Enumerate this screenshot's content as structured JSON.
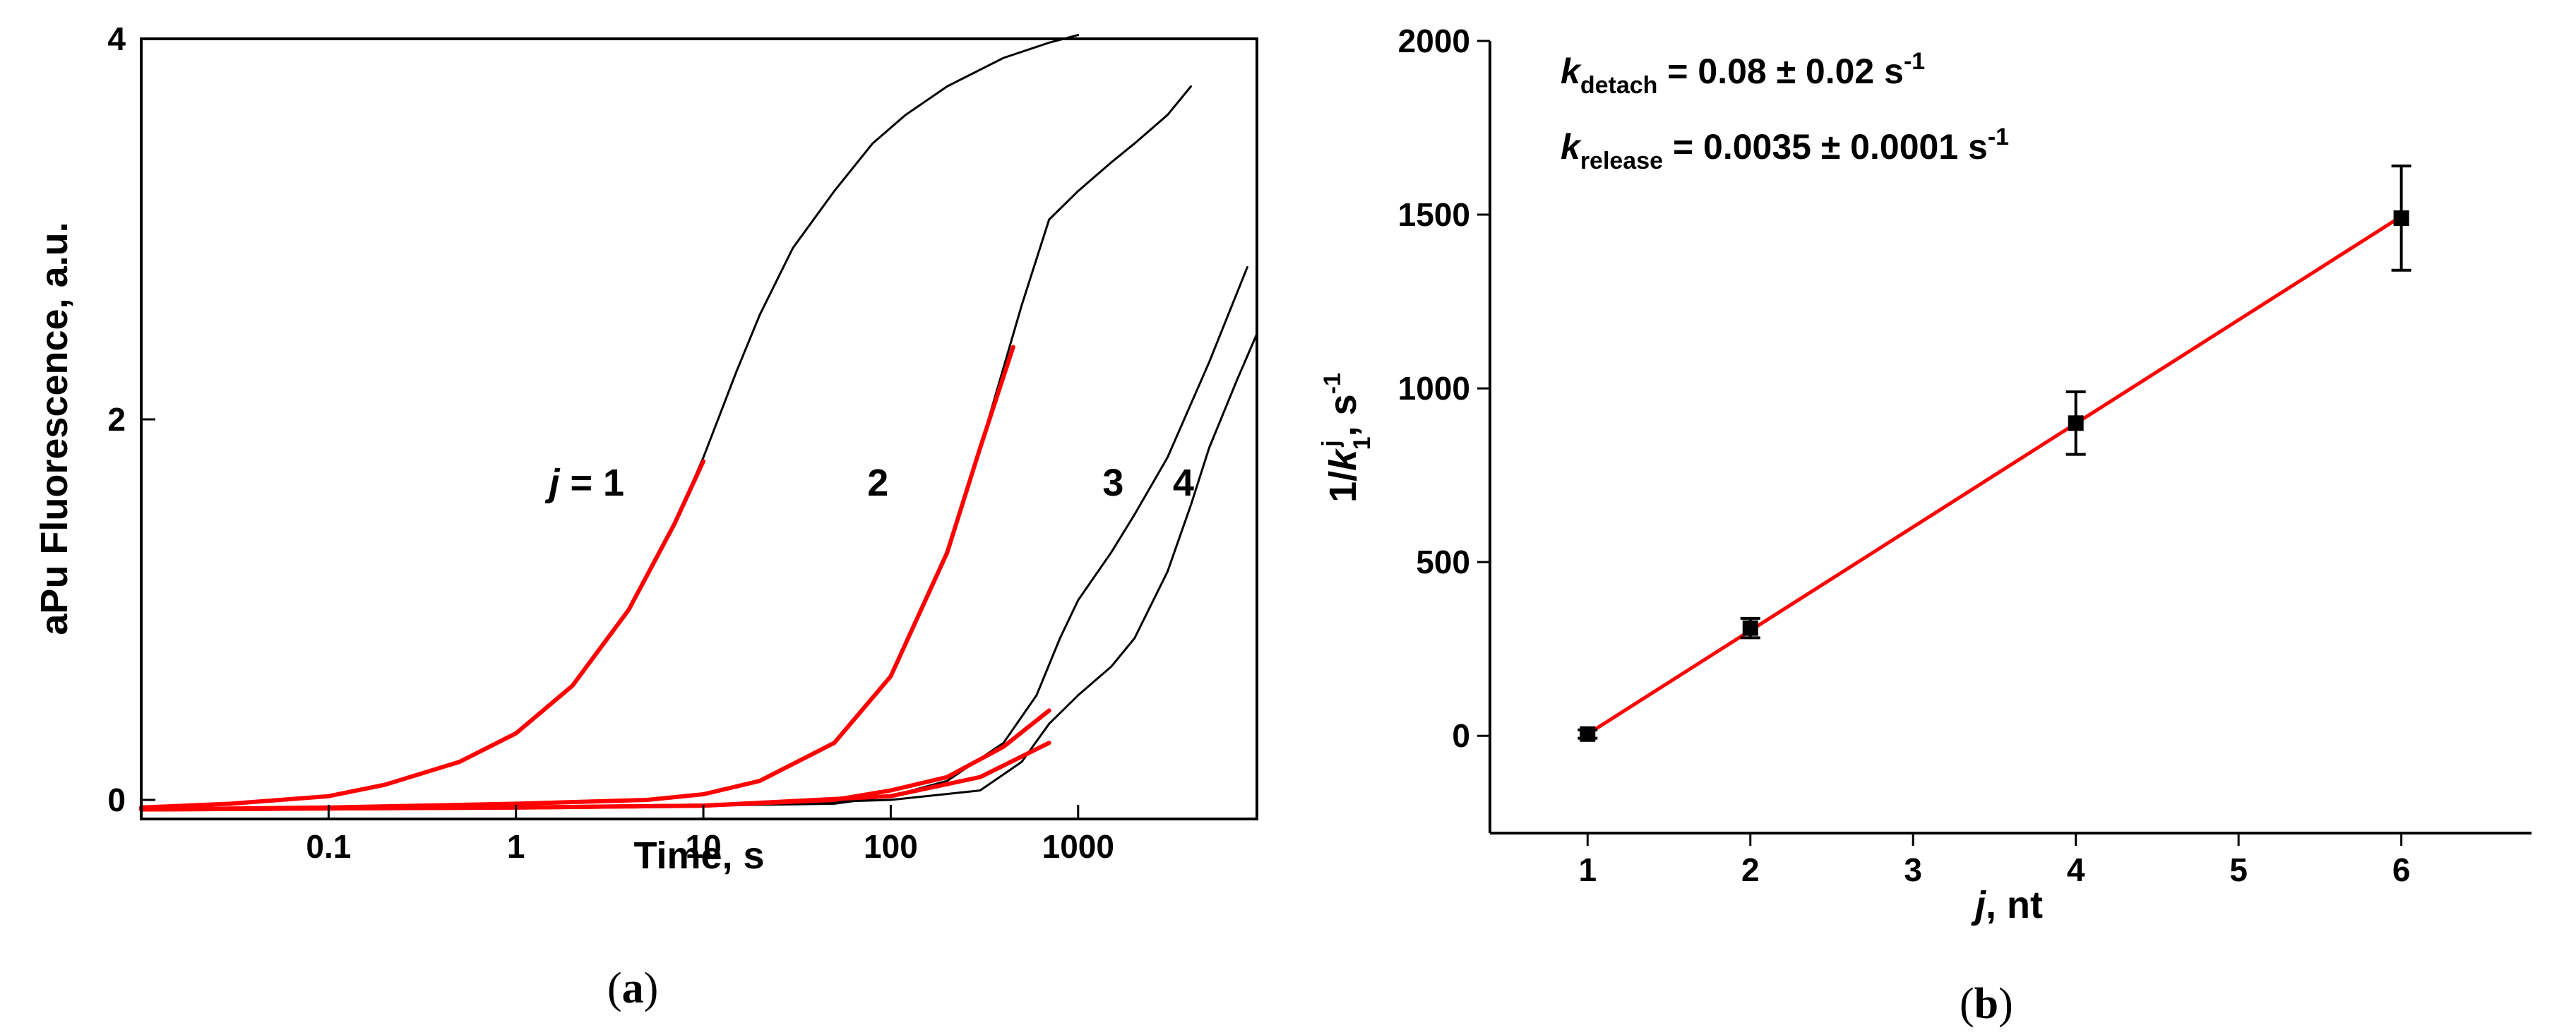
{
  "chart_data": [
    {
      "panel": "a",
      "panel_label": {
        "open": "(",
        "letter": "a",
        "close": ")"
      },
      "type": "line",
      "xscale": "log",
      "xlim": [
        0.01,
        9000
      ],
      "ylim": [
        -0.1,
        4
      ],
      "xlabel": "Time, s",
      "ylabel": "aPu Fluorescence, a.u.",
      "xticks": [
        {
          "value": 0.1,
          "label": "0.1"
        },
        {
          "value": 1,
          "label": "1"
        },
        {
          "value": 10,
          "label": "10"
        },
        {
          "value": 100,
          "label": "100"
        },
        {
          "value": 1000,
          "label": "1000"
        }
      ],
      "yticks": [
        {
          "value": 0,
          "label": "0"
        },
        {
          "value": 2,
          "label": "2"
        },
        {
          "value": 4,
          "label": "4"
        }
      ],
      "series_annotations": [
        {
          "prefix": "j",
          "suffix": " = 1",
          "x": 1.5,
          "y": 1.6
        },
        {
          "prefix": "",
          "suffix": "2",
          "x": 75,
          "y": 1.6
        },
        {
          "prefix": "",
          "suffix": "3",
          "x": 1350,
          "y": 1.6
        },
        {
          "prefix": "",
          "suffix": "4",
          "x": 3200,
          "y": 1.6
        }
      ],
      "series": [
        {
          "name": "j = 1 data",
          "color": "#000000",
          "x": [
            0.01,
            0.03,
            0.1,
            0.2,
            0.5,
            1,
            2,
            4,
            7,
            10,
            15,
            20,
            30,
            50,
            80,
            120,
            200,
            400,
            700,
            1000
          ],
          "values": [
            -0.04,
            -0.02,
            0.02,
            0.08,
            0.2,
            0.35,
            0.6,
            1.0,
            1.45,
            1.8,
            2.25,
            2.55,
            2.9,
            3.2,
            3.45,
            3.6,
            3.75,
            3.9,
            3.98,
            4.02
          ]
        },
        {
          "name": "j = 2 data",
          "color": "#000000",
          "x": [
            0.01,
            0.1,
            1,
            5,
            10,
            20,
            50,
            100,
            200,
            300,
            500,
            700,
            1000,
            1500,
            2000,
            3000,
            4000
          ],
          "values": [
            -0.05,
            -0.04,
            -0.02,
            0.0,
            0.03,
            0.1,
            0.3,
            0.65,
            1.3,
            1.85,
            2.6,
            3.05,
            3.2,
            3.35,
            3.45,
            3.6,
            3.75
          ]
        },
        {
          "name": "j = 3 data",
          "color": "#000000",
          "x": [
            0.01,
            1,
            10,
            50,
            100,
            200,
            400,
            600,
            800,
            1000,
            1500,
            2000,
            3000,
            5000,
            8000
          ],
          "values": [
            -0.05,
            -0.04,
            -0.03,
            -0.02,
            0.02,
            0.1,
            0.3,
            0.55,
            0.85,
            1.05,
            1.3,
            1.5,
            1.8,
            2.3,
            2.8
          ]
        },
        {
          "name": "j = 4 data",
          "color": "#000000",
          "x": [
            0.01,
            1,
            10,
            100,
            300,
            500,
            700,
            1000,
            1500,
            2000,
            3000,
            4000,
            5000,
            7000,
            9000
          ],
          "values": [
            -0.05,
            -0.04,
            -0.03,
            0.0,
            0.05,
            0.2,
            0.4,
            0.55,
            0.7,
            0.85,
            1.2,
            1.55,
            1.85,
            2.2,
            2.45
          ]
        },
        {
          "name": "j = 1 fit",
          "color": "#ff0000",
          "x": [
            0.01,
            0.03,
            0.1,
            0.2,
            0.5,
            1,
            2,
            4,
            7,
            10
          ],
          "values": [
            -0.04,
            -0.02,
            0.02,
            0.08,
            0.2,
            0.35,
            0.6,
            1.0,
            1.45,
            1.78
          ]
        },
        {
          "name": "j = 2 fit",
          "color": "#ff0000",
          "x": [
            0.01,
            0.1,
            1,
            5,
            10,
            20,
            50,
            100,
            200,
            300,
            450
          ],
          "values": [
            -0.05,
            -0.04,
            -0.02,
            0.0,
            0.03,
            0.1,
            0.3,
            0.65,
            1.3,
            1.85,
            2.38
          ]
        },
        {
          "name": "j = 3 fit",
          "color": "#ff0000",
          "x": [
            0.01,
            1,
            10,
            50,
            100,
            200,
            400,
            700
          ],
          "values": [
            -0.05,
            -0.04,
            -0.03,
            0.0,
            0.05,
            0.12,
            0.28,
            0.47
          ]
        },
        {
          "name": "j = 4 fit",
          "color": "#ff0000",
          "x": [
            0.01,
            1,
            10,
            100,
            300,
            700
          ],
          "values": [
            -0.05,
            -0.04,
            -0.03,
            0.02,
            0.12,
            0.3
          ]
        }
      ]
    },
    {
      "panel": "b",
      "panel_label": {
        "open": "(",
        "letter": "b",
        "close": ")"
      },
      "type": "scatter",
      "xlim": [
        0.4,
        6.8
      ],
      "ylim": [
        -280,
        2000
      ],
      "xlabel_prefix": "j",
      "xlabel_suffix": ", nt",
      "ylabel_main": "1/",
      "ylabel_k": "k",
      "ylabel_sup": "j",
      "ylabel_sub": "1",
      "ylabel_unit": ", s",
      "ylabel_unit_sup": "-1",
      "xticks": [
        {
          "value": 1,
          "label": "1"
        },
        {
          "value": 2,
          "label": "2"
        },
        {
          "value": 3,
          "label": "3"
        },
        {
          "value": 4,
          "label": "4"
        },
        {
          "value": 5,
          "label": "5"
        },
        {
          "value": 6,
          "label": "6"
        }
      ],
      "yticks": [
        {
          "value": 0,
          "label": "0"
        },
        {
          "value": 500,
          "label": "500"
        },
        {
          "value": 1000,
          "label": "1000"
        },
        {
          "value": 1500,
          "label": "1500"
        },
        {
          "value": 2000,
          "label": "2000"
        }
      ],
      "points": [
        {
          "x": 1,
          "y": 5,
          "err": 12
        },
        {
          "x": 2,
          "y": 310,
          "err": 28
        },
        {
          "x": 4,
          "y": 900,
          "err": 90
        },
        {
          "x": 6,
          "y": 1490,
          "err": 150
        }
      ],
      "fit_line": {
        "color": "#ff0000",
        "x": [
          1,
          6
        ],
        "y": [
          5,
          1495
        ]
      },
      "annotations": [
        {
          "k": "k",
          "sub": "detach",
          "text": " = 0.08 ± 0.02 s",
          "sup": "-1"
        },
        {
          "k": "k",
          "sub": "release",
          "text": " = 0.0035 ± 0.0001 s",
          "sup": "-1"
        }
      ]
    }
  ]
}
